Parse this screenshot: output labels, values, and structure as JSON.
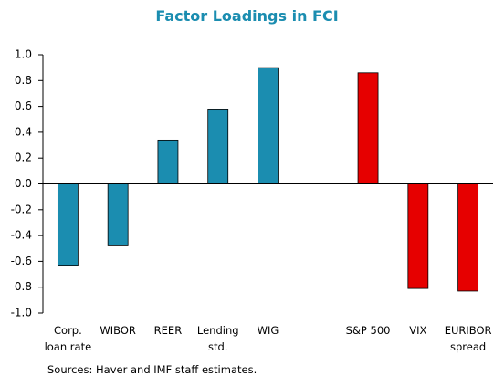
{
  "chart_data": {
    "type": "bar",
    "title": "Factor Loadings in FCI",
    "categories": [
      "Corp.\nloan rate",
      "WIBOR",
      "REER",
      "Lending\nstd.",
      "WIG",
      null,
      "S&P 500",
      "VIX",
      "EURIBOR\nspread"
    ],
    "values": [
      -0.63,
      -0.48,
      0.34,
      0.58,
      0.9,
      null,
      0.86,
      -0.81,
      -0.83
    ],
    "colors": [
      "#1b8db0",
      "#1b8db0",
      "#1b8db0",
      "#1b8db0",
      "#1b8db0",
      null,
      "#e60000",
      "#e60000",
      "#e60000"
    ],
    "ylim": [
      -1,
      1
    ],
    "yticks": [
      {
        "value": -1,
        "label": "-1.0"
      },
      -0.8,
      -0.6,
      -0.4,
      -0.2,
      {
        "value": 0,
        "label": "0.0"
      },
      0.2,
      0.4,
      0.6,
      0.8,
      {
        "value": 1,
        "label": "1.0"
      }
    ],
    "grid": false,
    "note": "Sources: Haver and IMF staff estimates."
  }
}
